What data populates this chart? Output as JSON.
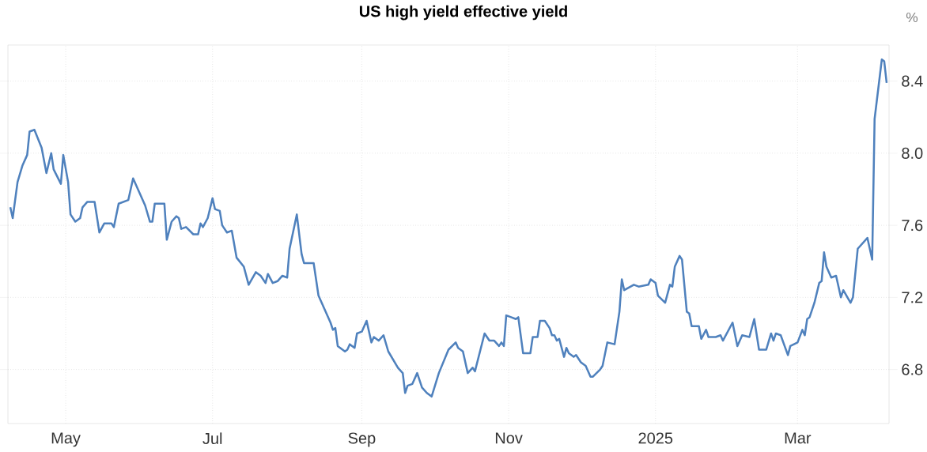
{
  "chart_data": {
    "type": "line",
    "title": "US high yield effective yield",
    "ylabel": "%",
    "color": "#4f81bd",
    "grid": true,
    "xlim": [
      "2024-04-07",
      "2025-04-08"
    ],
    "ylim": [
      6.5,
      8.6
    ],
    "xticks": [
      {
        "value": "2024-05-01",
        "label": "May"
      },
      {
        "value": "2024-07-01",
        "label": "Jul"
      },
      {
        "value": "2024-09-01",
        "label": "Sep"
      },
      {
        "value": "2024-11-01",
        "label": "Nov"
      },
      {
        "value": "2025-01-01",
        "label": "2025"
      },
      {
        "value": "2025-03-01",
        "label": "Mar"
      }
    ],
    "yticks": [
      6.8,
      7.2,
      7.6,
      {
        "value": 8.0,
        "label": "8.0"
      },
      8.4
    ],
    "x": [
      "2024-04-08",
      "2024-04-09",
      "2024-04-11",
      "2024-04-13",
      "2024-04-15",
      "2024-04-16",
      "2024-04-18",
      "2024-04-21",
      "2024-04-23",
      "2024-04-25",
      "2024-04-26",
      "2024-04-29",
      "2024-04-30",
      "2024-05-02",
      "2024-05-03",
      "2024-05-05",
      "2024-05-07",
      "2024-05-08",
      "2024-05-10",
      "2024-05-13",
      "2024-05-15",
      "2024-05-17",
      "2024-05-20",
      "2024-05-21",
      "2024-05-23",
      "2024-05-27",
      "2024-05-29",
      "2024-06-03",
      "2024-06-05",
      "2024-06-06",
      "2024-06-07",
      "2024-06-11",
      "2024-06-12",
      "2024-06-14",
      "2024-06-16",
      "2024-06-17",
      "2024-06-18",
      "2024-06-20",
      "2024-06-23",
      "2024-06-25",
      "2024-06-26",
      "2024-06-27",
      "2024-06-29",
      "2024-07-01",
      "2024-07-02",
      "2024-07-04",
      "2024-07-05",
      "2024-07-07",
      "2024-07-09",
      "2024-07-11",
      "2024-07-14",
      "2024-07-16",
      "2024-07-19",
      "2024-07-21",
      "2024-07-23",
      "2024-07-24",
      "2024-07-26",
      "2024-07-28",
      "2024-07-30",
      "2024-08-01",
      "2024-08-02",
      "2024-08-05",
      "2024-08-07",
      "2024-08-08",
      "2024-08-12",
      "2024-08-14",
      "2024-08-19",
      "2024-08-20",
      "2024-08-21",
      "2024-08-22",
      "2024-08-25",
      "2024-08-26",
      "2024-08-27",
      "2024-08-29",
      "2024-08-30",
      "2024-09-01",
      "2024-09-03",
      "2024-09-05",
      "2024-09-06",
      "2024-09-08",
      "2024-09-10",
      "2024-09-12",
      "2024-09-16",
      "2024-09-18",
      "2024-09-19",
      "2024-09-20",
      "2024-09-22",
      "2024-09-24",
      "2024-09-26",
      "2024-09-28",
      "2024-09-30",
      "2024-10-03",
      "2024-10-07",
      "2024-10-10",
      "2024-10-11",
      "2024-10-13",
      "2024-10-15",
      "2024-10-17",
      "2024-10-18",
      "2024-10-22",
      "2024-10-24",
      "2024-10-26",
      "2024-10-28",
      "2024-10-29",
      "2024-10-30",
      "2024-10-31",
      "2024-11-02",
      "2024-11-04",
      "2024-11-05",
      "2024-11-07",
      "2024-11-10",
      "2024-11-11",
      "2024-11-13",
      "2024-11-14",
      "2024-11-16",
      "2024-11-18",
      "2024-11-19",
      "2024-11-20",
      "2024-11-21",
      "2024-11-22",
      "2024-11-24",
      "2024-11-25",
      "2024-11-26",
      "2024-11-28",
      "2024-11-29",
      "2024-12-01",
      "2024-12-03",
      "2024-12-05",
      "2024-12-06",
      "2024-12-09",
      "2024-12-10",
      "2024-12-12",
      "2024-12-15",
      "2024-12-17",
      "2024-12-18",
      "2024-12-19",
      "2024-12-23",
      "2024-12-25",
      "2024-12-29",
      "2024-12-30",
      "2025-01-01",
      "2025-01-02",
      "2025-01-05",
      "2025-01-07",
      "2025-01-08",
      "2025-01-09",
      "2025-01-11",
      "2025-01-12",
      "2025-01-14",
      "2025-01-15",
      "2025-01-16",
      "2025-01-19",
      "2025-01-20",
      "2025-01-22",
      "2025-01-23",
      "2025-01-26",
      "2025-01-28",
      "2025-01-29",
      "2025-02-02",
      "2025-02-04",
      "2025-02-06",
      "2025-02-09",
      "2025-02-11",
      "2025-02-13",
      "2025-02-16",
      "2025-02-18",
      "2025-02-19",
      "2025-02-20",
      "2025-02-22",
      "2025-02-25",
      "2025-02-26",
      "2025-03-01",
      "2025-03-03",
      "2025-03-04",
      "2025-03-05",
      "2025-03-06",
      "2025-03-08",
      "2025-03-10",
      "2025-03-11",
      "2025-03-12",
      "2025-03-13",
      "2025-03-15",
      "2025-03-17",
      "2025-03-19",
      "2025-03-20",
      "2025-03-23",
      "2025-03-24",
      "2025-03-26",
      "2025-03-30",
      "2025-04-01",
      "2025-04-02",
      "2025-04-05",
      "2025-04-06",
      "2025-04-07"
    ],
    "values": [
      7.7,
      7.64,
      7.84,
      7.93,
      7.99,
      8.12,
      8.13,
      8.03,
      7.89,
      8.0,
      7.91,
      7.83,
      7.99,
      7.84,
      7.66,
      7.62,
      7.64,
      7.7,
      7.73,
      7.73,
      7.56,
      7.61,
      7.61,
      7.59,
      7.72,
      7.74,
      7.86,
      7.71,
      7.62,
      7.62,
      7.72,
      7.72,
      7.52,
      7.62,
      7.65,
      7.64,
      7.58,
      7.59,
      7.55,
      7.55,
      7.61,
      7.59,
      7.64,
      7.75,
      7.69,
      7.68,
      7.6,
      7.56,
      7.57,
      7.42,
      7.37,
      7.27,
      7.34,
      7.32,
      7.28,
      7.33,
      7.28,
      7.29,
      7.32,
      7.31,
      7.47,
      7.66,
      7.44,
      7.39,
      7.39,
      7.21,
      7.06,
      7.02,
      7.03,
      6.93,
      6.9,
      6.91,
      6.94,
      6.92,
      7.0,
      7.01,
      7.07,
      6.95,
      6.98,
      6.96,
      6.99,
      6.9,
      6.81,
      6.78,
      6.67,
      6.71,
      6.72,
      6.78,
      6.7,
      6.67,
      6.65,
      6.78,
      6.91,
      6.95,
      6.92,
      6.9,
      6.78,
      6.81,
      6.79,
      7.0,
      6.96,
      6.96,
      6.93,
      6.95,
      6.93,
      7.1,
      7.09,
      7.08,
      7.09,
      6.89,
      6.89,
      6.98,
      6.98,
      7.07,
      7.07,
      7.03,
      6.99,
      6.99,
      6.96,
      6.97,
      6.87,
      6.92,
      6.89,
      6.87,
      6.88,
      6.84,
      6.82,
      6.76,
      6.76,
      6.8,
      6.82,
      6.95,
      6.94,
      7.12,
      7.3,
      7.24,
      7.27,
      7.26,
      7.27,
      7.3,
      7.28,
      7.21,
      7.17,
      7.27,
      7.26,
      7.37,
      7.43,
      7.41,
      7.12,
      7.11,
      7.04,
      7.04,
      6.97,
      7.02,
      6.98,
      6.98,
      6.99,
      6.96,
      7.06,
      6.93,
      6.99,
      6.98,
      7.08,
      6.91,
      6.91,
      7.0,
      6.96,
      7.0,
      6.99,
      6.88,
      6.93,
      6.95,
      7.02,
      6.99,
      7.08,
      7.09,
      7.17,
      7.28,
      7.29,
      7.45,
      7.37,
      7.31,
      7.32,
      7.2,
      7.24,
      7.17,
      7.2,
      7.47,
      7.53,
      7.41,
      8.19,
      8.52,
      8.51,
      8.39
    ]
  }
}
